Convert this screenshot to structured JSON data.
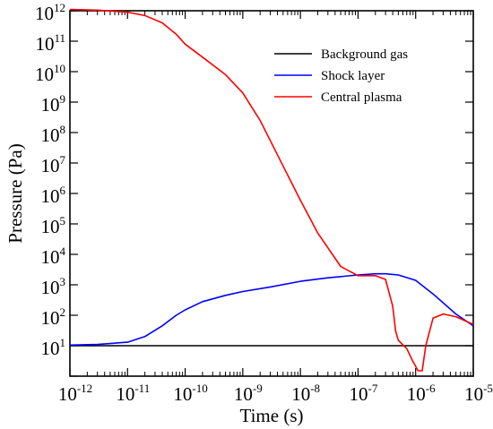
{
  "chart_data": {
    "type": "line",
    "xlabel": "Time (s)",
    "ylabel": "Pressure (Pa)",
    "x_scale": "log",
    "y_scale": "log",
    "xlim": [
      1e-12,
      1e-05
    ],
    "ylim": [
      1,
      1000000000000.0
    ],
    "x_tick_labels": [
      {
        "base": "10",
        "exp": "-12"
      },
      {
        "base": "10",
        "exp": "-11"
      },
      {
        "base": "10",
        "exp": "-10"
      },
      {
        "base": "10",
        "exp": "-9"
      },
      {
        "base": "10",
        "exp": "-8"
      },
      {
        "base": "10",
        "exp": "-7"
      },
      {
        "base": "10",
        "exp": "-6"
      },
      {
        "base": "10",
        "exp": "-5"
      }
    ],
    "y_tick_labels": [
      {
        "base": "10",
        "exp": "1"
      },
      {
        "base": "10",
        "exp": "2"
      },
      {
        "base": "10",
        "exp": "3"
      },
      {
        "base": "10",
        "exp": "4"
      },
      {
        "base": "10",
        "exp": "5"
      },
      {
        "base": "10",
        "exp": "6"
      },
      {
        "base": "10",
        "exp": "7"
      },
      {
        "base": "10",
        "exp": "8"
      },
      {
        "base": "10",
        "exp": "9"
      },
      {
        "base": "10",
        "exp": "10"
      },
      {
        "base": "10",
        "exp": "11"
      },
      {
        "base": "10",
        "exp": "12"
      }
    ],
    "grid": false,
    "legend_position": "top-right",
    "series": [
      {
        "name": "Background gas",
        "color": "#000000",
        "x": [
          1e-12,
          1e-05
        ],
        "y": [
          10,
          10
        ]
      },
      {
        "name": "Shock layer",
        "color": "#0000ff",
        "x": [
          1e-12,
          3e-12,
          1e-11,
          2e-11,
          4e-11,
          7e-11,
          1e-10,
          2e-10,
          5e-10,
          1e-09,
          3e-09,
          1e-08,
          3e-08,
          1e-07,
          2e-07,
          3e-07,
          5e-07,
          1e-06,
          2e-06,
          5e-06,
          1e-05
        ],
        "y": [
          10.5,
          11,
          13,
          20,
          45,
          100,
          150,
          280,
          450,
          600,
          850,
          1300,
          1700,
          2100,
          2300,
          2300,
          2100,
          1400,
          500,
          110,
          45
        ]
      },
      {
        "name": "Central plasma",
        "color": "#ff0000",
        "x": [
          1e-12,
          3e-12,
          1e-11,
          2e-11,
          4e-11,
          7e-11,
          1e-10,
          2e-10,
          5e-10,
          1e-09,
          2e-09,
          5e-09,
          1e-08,
          2e-08,
          5e-08,
          1e-07,
          2e-07,
          3e-07,
          4e-07,
          4.5e-07,
          5e-07,
          7e-07,
          9e-07,
          1.1e-06,
          1.3e-06,
          1.5e-06,
          2e-06,
          3e-06,
          5e-06,
          1e-05
        ],
        "y": [
          1100000000000.0,
          1050000000000.0,
          900000000000.0,
          700000000000.0,
          400000000000.0,
          170000000000.0,
          80000000000.0,
          30000000000.0,
          8000000000.0,
          2000000000.0,
          250000000.0,
          8000000.0,
          600000.0,
          50000.0,
          4000.0,
          2000.0,
          2000.0,
          1500.0,
          200,
          30,
          15,
          8,
          3,
          1.5,
          1.5,
          10,
          80,
          110,
          90,
          50
        ]
      }
    ]
  }
}
